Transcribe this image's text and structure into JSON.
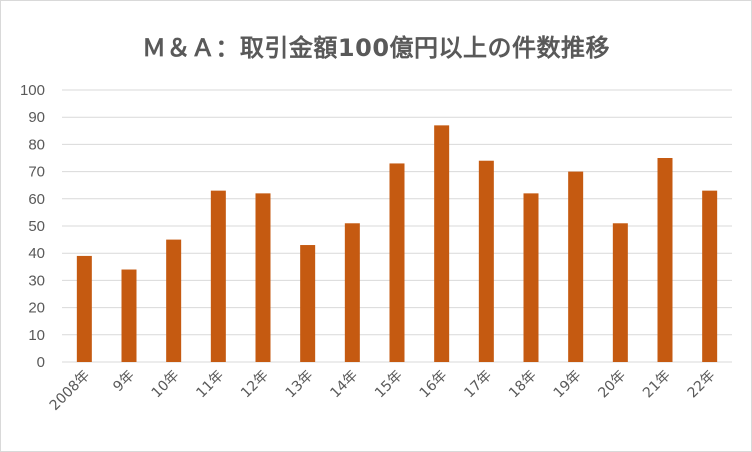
{
  "chart_data": {
    "type": "bar",
    "title": "Ｍ＆Ａ：取引金額100億円以上の件数推移",
    "xlabel": "",
    "ylabel": "",
    "categories": [
      "2008年",
      "9年",
      "10年",
      "11年",
      "12年",
      "13年",
      "14年",
      "15年",
      "16年",
      "17年",
      "18年",
      "19年",
      "20年",
      "21年",
      "22年"
    ],
    "values": [
      39,
      34,
      45,
      63,
      62,
      43,
      51,
      73,
      87,
      74,
      62,
      70,
      51,
      75,
      63
    ],
    "ylim": [
      0,
      100
    ],
    "yticks": [
      0,
      10,
      20,
      30,
      40,
      50,
      60,
      70,
      80,
      90,
      100
    ],
    "grid": true,
    "legend": "none",
    "bar_color": "#c55a11",
    "grid_color": "#d9d9d9",
    "text_color": "#595959"
  }
}
